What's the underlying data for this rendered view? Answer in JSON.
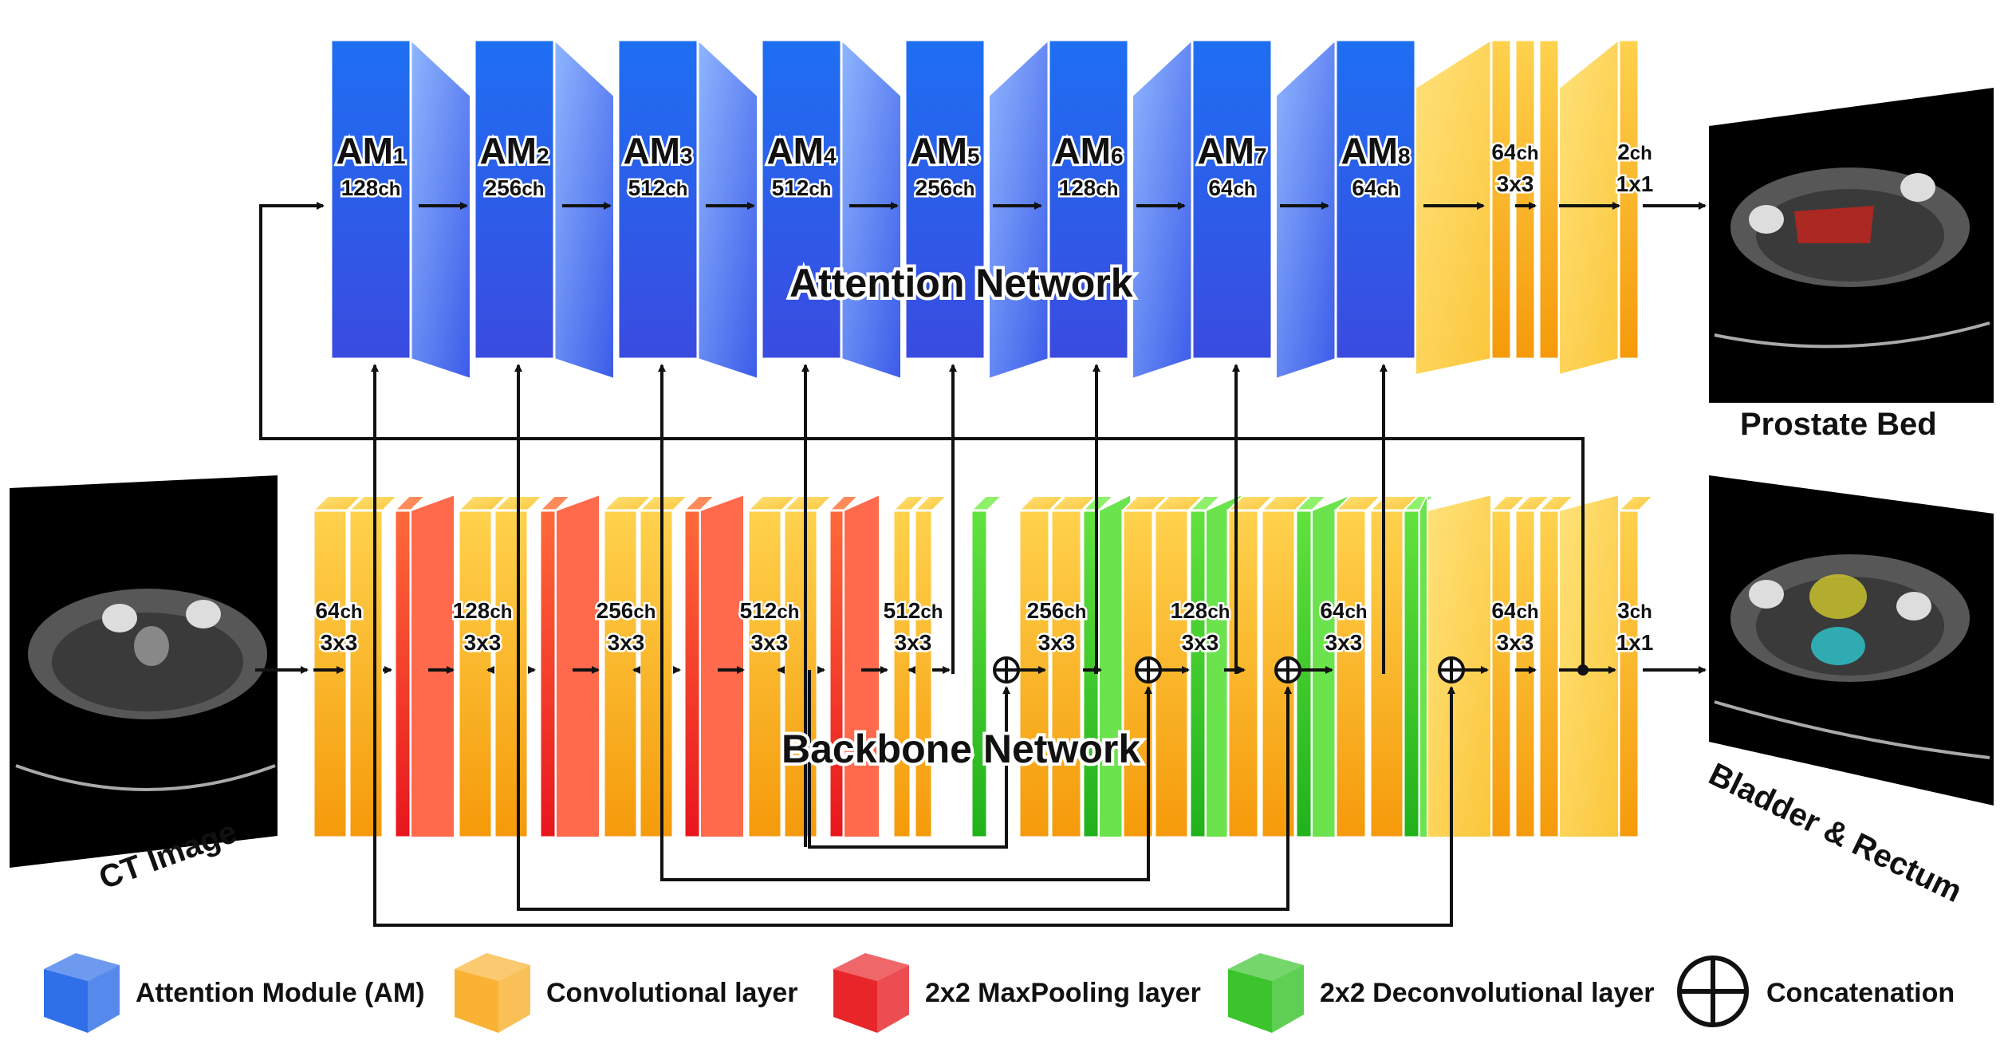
{
  "attention": {
    "title": "Attention Network",
    "modules": [
      {
        "name": "AM",
        "index": "1",
        "ch": "128",
        "unit": "ch"
      },
      {
        "name": "AM",
        "index": "2",
        "ch": "256",
        "unit": "ch"
      },
      {
        "name": "AM",
        "index": "3",
        "ch": "512",
        "unit": "ch"
      },
      {
        "name": "AM",
        "index": "4",
        "ch": "512",
        "unit": "ch"
      },
      {
        "name": "AM",
        "index": "5",
        "ch": "256",
        "unit": "ch"
      },
      {
        "name": "AM",
        "index": "6",
        "ch": "128",
        "unit": "ch"
      },
      {
        "name": "AM",
        "index": "7",
        "ch": "64",
        "unit": "ch"
      },
      {
        "name": "AM",
        "index": "8",
        "ch": "64",
        "unit": "ch"
      }
    ],
    "heads": [
      {
        "ch": "64",
        "unit": "ch",
        "kernel": "3x3"
      },
      {
        "ch": "2",
        "unit": "ch",
        "kernel": "1x1"
      }
    ],
    "output_label": "Prostate Bed"
  },
  "backbone": {
    "title": "Backbone Network",
    "input_label": "CT Image",
    "output_label": "Bladder & Rectum",
    "stages": [
      {
        "ch": "64",
        "unit": "ch",
        "kernel": "3x3"
      },
      {
        "ch": "128",
        "unit": "ch",
        "kernel": "3x3"
      },
      {
        "ch": "256",
        "unit": "ch",
        "kernel": "3x3"
      },
      {
        "ch": "512",
        "unit": "ch",
        "kernel": "3x3"
      },
      {
        "ch": "512",
        "unit": "ch",
        "kernel": "3x3"
      },
      {
        "ch": "256",
        "unit": "ch",
        "kernel": "3x3"
      },
      {
        "ch": "128",
        "unit": "ch",
        "kernel": "3x3"
      },
      {
        "ch": "64",
        "unit": "ch",
        "kernel": "3x3"
      },
      {
        "ch": "64",
        "unit": "ch",
        "kernel": "3x3"
      },
      {
        "ch": "3",
        "unit": "ch",
        "kernel": "1x1"
      }
    ]
  },
  "legend": [
    {
      "label": "Attention Module (AM)",
      "icon": "blue-cube-icon",
      "color": "#2f6fe8"
    },
    {
      "label": "Convolutional layer",
      "icon": "orange-cube-icon",
      "color": "#f9b233"
    },
    {
      "label": "2x2 MaxPooling layer",
      "icon": "red-cube-icon",
      "color": "#e8262a"
    },
    {
      "label": "2x2 Deconvolutional layer",
      "icon": "green-cube-icon",
      "color": "#3bc42c"
    },
    {
      "label": "Concatenation",
      "icon": "concat-circle-icon",
      "color": "#111111"
    }
  ],
  "colors": {
    "attention": "#2f6fe8",
    "conv": "#f9b233",
    "maxpool": "#e8262a",
    "deconv": "#3bc42c",
    "image_bg": "#000000"
  }
}
